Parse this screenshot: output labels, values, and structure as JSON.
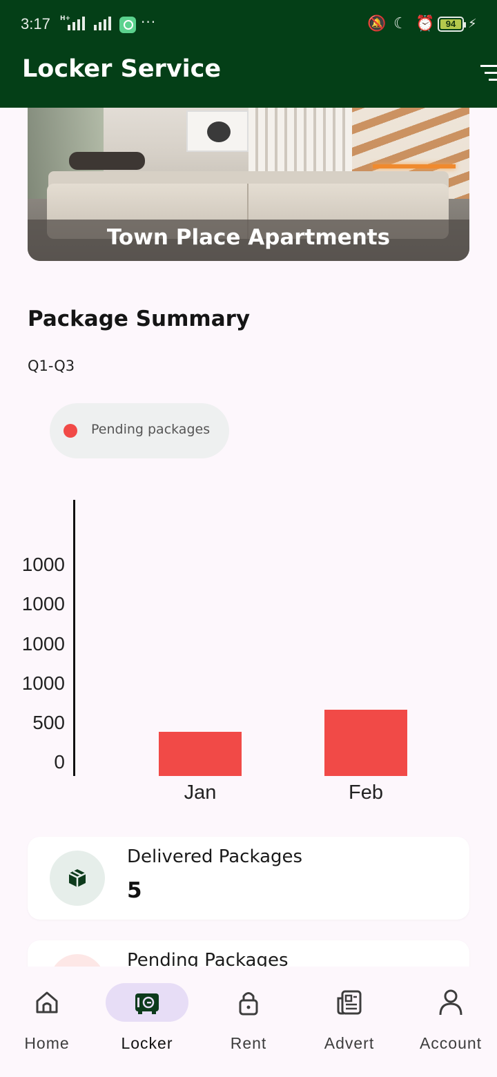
{
  "status_bar": {
    "time": "3:17",
    "network": "H+",
    "battery": "94"
  },
  "app_bar": {
    "title": "Locker Service"
  },
  "hero": {
    "caption": "Town Place Apartments"
  },
  "summary": {
    "title": "Package Summary",
    "subtitle": "Q1-Q3",
    "legend_label": "Pending packages"
  },
  "chart_data": {
    "type": "bar",
    "categories": [
      "Jan",
      "Feb"
    ],
    "series": [
      {
        "name": "Pending packages",
        "values": [
          400,
          600
        ],
        "color": "#f14a47"
      }
    ],
    "ytick_labels": [
      "0",
      "500",
      "1000",
      "1000",
      "1000",
      "1000"
    ],
    "ylim": [
      0,
      1500
    ],
    "legend_placement": "top-left"
  },
  "cards": {
    "delivered": {
      "label": "Delivered Packages",
      "count": "5",
      "icon": "package-icon"
    },
    "pending": {
      "label": "Pending Packages"
    }
  },
  "nav": {
    "items": [
      {
        "label": "Home",
        "icon": "home-icon"
      },
      {
        "label": "Locker",
        "icon": "locker-icon"
      },
      {
        "label": "Rent",
        "icon": "lock-icon"
      },
      {
        "label": "Advert",
        "icon": "newspaper-icon"
      },
      {
        "label": "Account",
        "icon": "person-icon"
      }
    ],
    "active": "Locker"
  },
  "colors": {
    "header": "#043f17",
    "accent_red": "#f14a47",
    "active_pill": "#e7ddf6",
    "background": "#fdf7fc"
  }
}
